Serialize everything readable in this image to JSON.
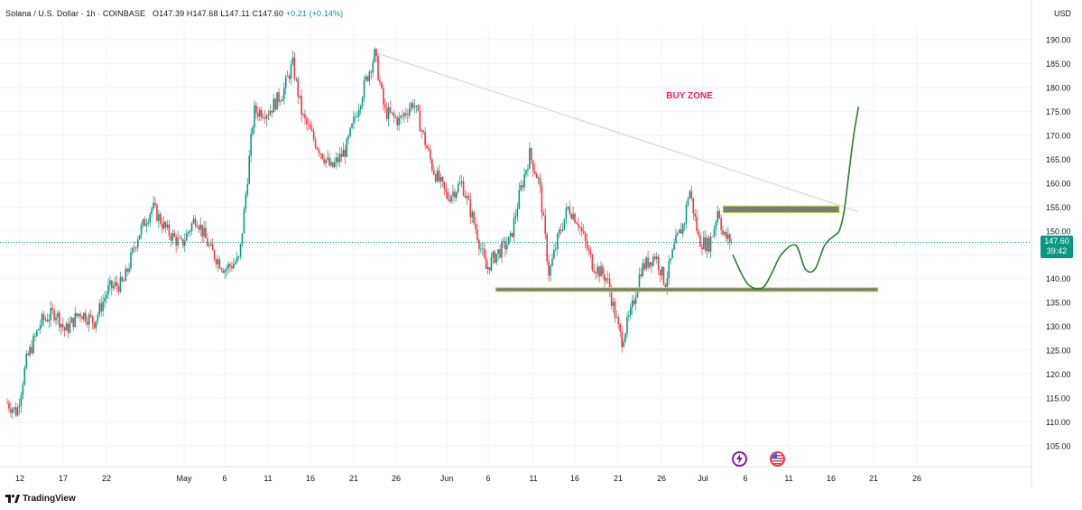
{
  "header": {
    "symbol": "Solana / U.S. Dollar · 1h · COINBASE",
    "open_label": "O",
    "open": "147.39",
    "high_label": "H",
    "high": "147.68",
    "low_label": "L",
    "low": "147.11",
    "close_label": "C",
    "close": "147.60",
    "change": "+0.21 (+0.14%)"
  },
  "currency": "USD",
  "last_price": {
    "value": "147.60",
    "countdown": "39:42"
  },
  "annotations": {
    "buy_zone": "BUY ZONE"
  },
  "branding": {
    "name": "TradingView"
  },
  "colors": {
    "up": "#089981",
    "down": "#f23645",
    "annotation_text": "#e91e63",
    "zone_fill": "#787b86",
    "zone_border": "#cddc39",
    "projection": "#2e7d32",
    "trendline": "#d1d4dc",
    "price_line": "#089981"
  },
  "icons": [
    "lightning-event-icon",
    "us-flag-event-icon"
  ],
  "chart_data": {
    "type": "candlestick",
    "title": "Solana / U.S. Dollar · 1h · COINBASE",
    "ylim": [
      102,
      193
    ],
    "y_ticks": [
      "190.00",
      "185.00",
      "180.00",
      "175.00",
      "170.00",
      "165.00",
      "160.00",
      "155.00",
      "150.00",
      "145.00",
      "140.00",
      "135.00",
      "130.00",
      "125.00",
      "120.00",
      "115.00",
      "110.00",
      "105.00"
    ],
    "x_ticks": [
      "12",
      "17",
      "22",
      "May",
      "6",
      "11",
      "16",
      "21",
      "26",
      "Jun",
      "6",
      "11",
      "16",
      "21",
      "26",
      "Jul",
      "6",
      "11",
      "16",
      "21",
      "26"
    ],
    "price_path": [
      {
        "t": 0,
        "p": 114
      },
      {
        "t": 2,
        "p": 112
      },
      {
        "t": 4,
        "p": 123
      },
      {
        "t": 7,
        "p": 131
      },
      {
        "t": 10,
        "p": 133
      },
      {
        "t": 12,
        "p": 129
      },
      {
        "t": 15,
        "p": 133
      },
      {
        "t": 18,
        "p": 131
      },
      {
        "t": 21,
        "p": 138
      },
      {
        "t": 24,
        "p": 139
      },
      {
        "t": 27,
        "p": 149
      },
      {
        "t": 30,
        "p": 155
      },
      {
        "t": 33,
        "p": 150
      },
      {
        "t": 36,
        "p": 147
      },
      {
        "t": 39,
        "p": 153
      },
      {
        "t": 42,
        "p": 146
      },
      {
        "t": 45,
        "p": 142
      },
      {
        "t": 48,
        "p": 144
      },
      {
        "t": 51,
        "p": 175
      },
      {
        "t": 54,
        "p": 175
      },
      {
        "t": 57,
        "p": 179
      },
      {
        "t": 59,
        "p": 185
      },
      {
        "t": 61,
        "p": 174
      },
      {
        "t": 64,
        "p": 168
      },
      {
        "t": 67,
        "p": 163
      },
      {
        "t": 70,
        "p": 167
      },
      {
        "t": 72,
        "p": 174
      },
      {
        "t": 74,
        "p": 181
      },
      {
        "t": 76,
        "p": 187
      },
      {
        "t": 78,
        "p": 175
      },
      {
        "t": 81,
        "p": 173
      },
      {
        "t": 84,
        "p": 177
      },
      {
        "t": 86,
        "p": 170
      },
      {
        "t": 88,
        "p": 163
      },
      {
        "t": 91,
        "p": 157
      },
      {
        "t": 94,
        "p": 160
      },
      {
        "t": 97,
        "p": 150
      },
      {
        "t": 99,
        "p": 142
      },
      {
        "t": 101,
        "p": 145
      },
      {
        "t": 104,
        "p": 148
      },
      {
        "t": 106,
        "p": 158
      },
      {
        "t": 108,
        "p": 166
      },
      {
        "t": 110,
        "p": 160
      },
      {
        "t": 112,
        "p": 141
      },
      {
        "t": 114,
        "p": 149
      },
      {
        "t": 116,
        "p": 155
      },
      {
        "t": 118,
        "p": 152
      },
      {
        "t": 121,
        "p": 143
      },
      {
        "t": 124,
        "p": 140
      },
      {
        "t": 126,
        "p": 131
      },
      {
        "t": 127,
        "p": 127
      },
      {
        "t": 129,
        "p": 133
      },
      {
        "t": 131,
        "p": 142
      },
      {
        "t": 134,
        "p": 145
      },
      {
        "t": 136,
        "p": 139
      },
      {
        "t": 138,
        "p": 147
      },
      {
        "t": 140,
        "p": 152
      },
      {
        "t": 141,
        "p": 159
      },
      {
        "t": 143,
        "p": 148
      },
      {
        "t": 145,
        "p": 147
      },
      {
        "t": 146,
        "p": 150
      },
      {
        "t": 147,
        "p": 155
      },
      {
        "t": 148,
        "p": 149
      },
      {
        "t": 150,
        "p": 147.6
      }
    ],
    "time_range": [
      0,
      150
    ],
    "trendline": {
      "from": {
        "t": 77,
        "p": 187
      },
      "to": {
        "t": 176,
        "p": 154
      }
    },
    "zones": [
      {
        "t_start": 148,
        "t_end": 172,
        "p_low": 153.8,
        "p_high": 155.2
      },
      {
        "t_start": 101,
        "t_end": 180,
        "p_low": 137.3,
        "p_high": 138.1
      }
    ],
    "projection": [
      {
        "t": 150,
        "p": 145
      },
      {
        "t": 153,
        "p": 139
      },
      {
        "t": 156,
        "p": 138
      },
      {
        "t": 158,
        "p": 141
      },
      {
        "t": 160,
        "p": 145
      },
      {
        "t": 163,
        "p": 147
      },
      {
        "t": 165,
        "p": 142
      },
      {
        "t": 167,
        "p": 142
      },
      {
        "t": 169,
        "p": 147
      },
      {
        "t": 171,
        "p": 149
      },
      {
        "t": 172,
        "p": 150
      },
      {
        "t": 173,
        "p": 154
      },
      {
        "t": 174,
        "p": 162
      },
      {
        "t": 175,
        "p": 170
      },
      {
        "t": 176,
        "p": 176
      }
    ],
    "last_price": 147.6
  }
}
